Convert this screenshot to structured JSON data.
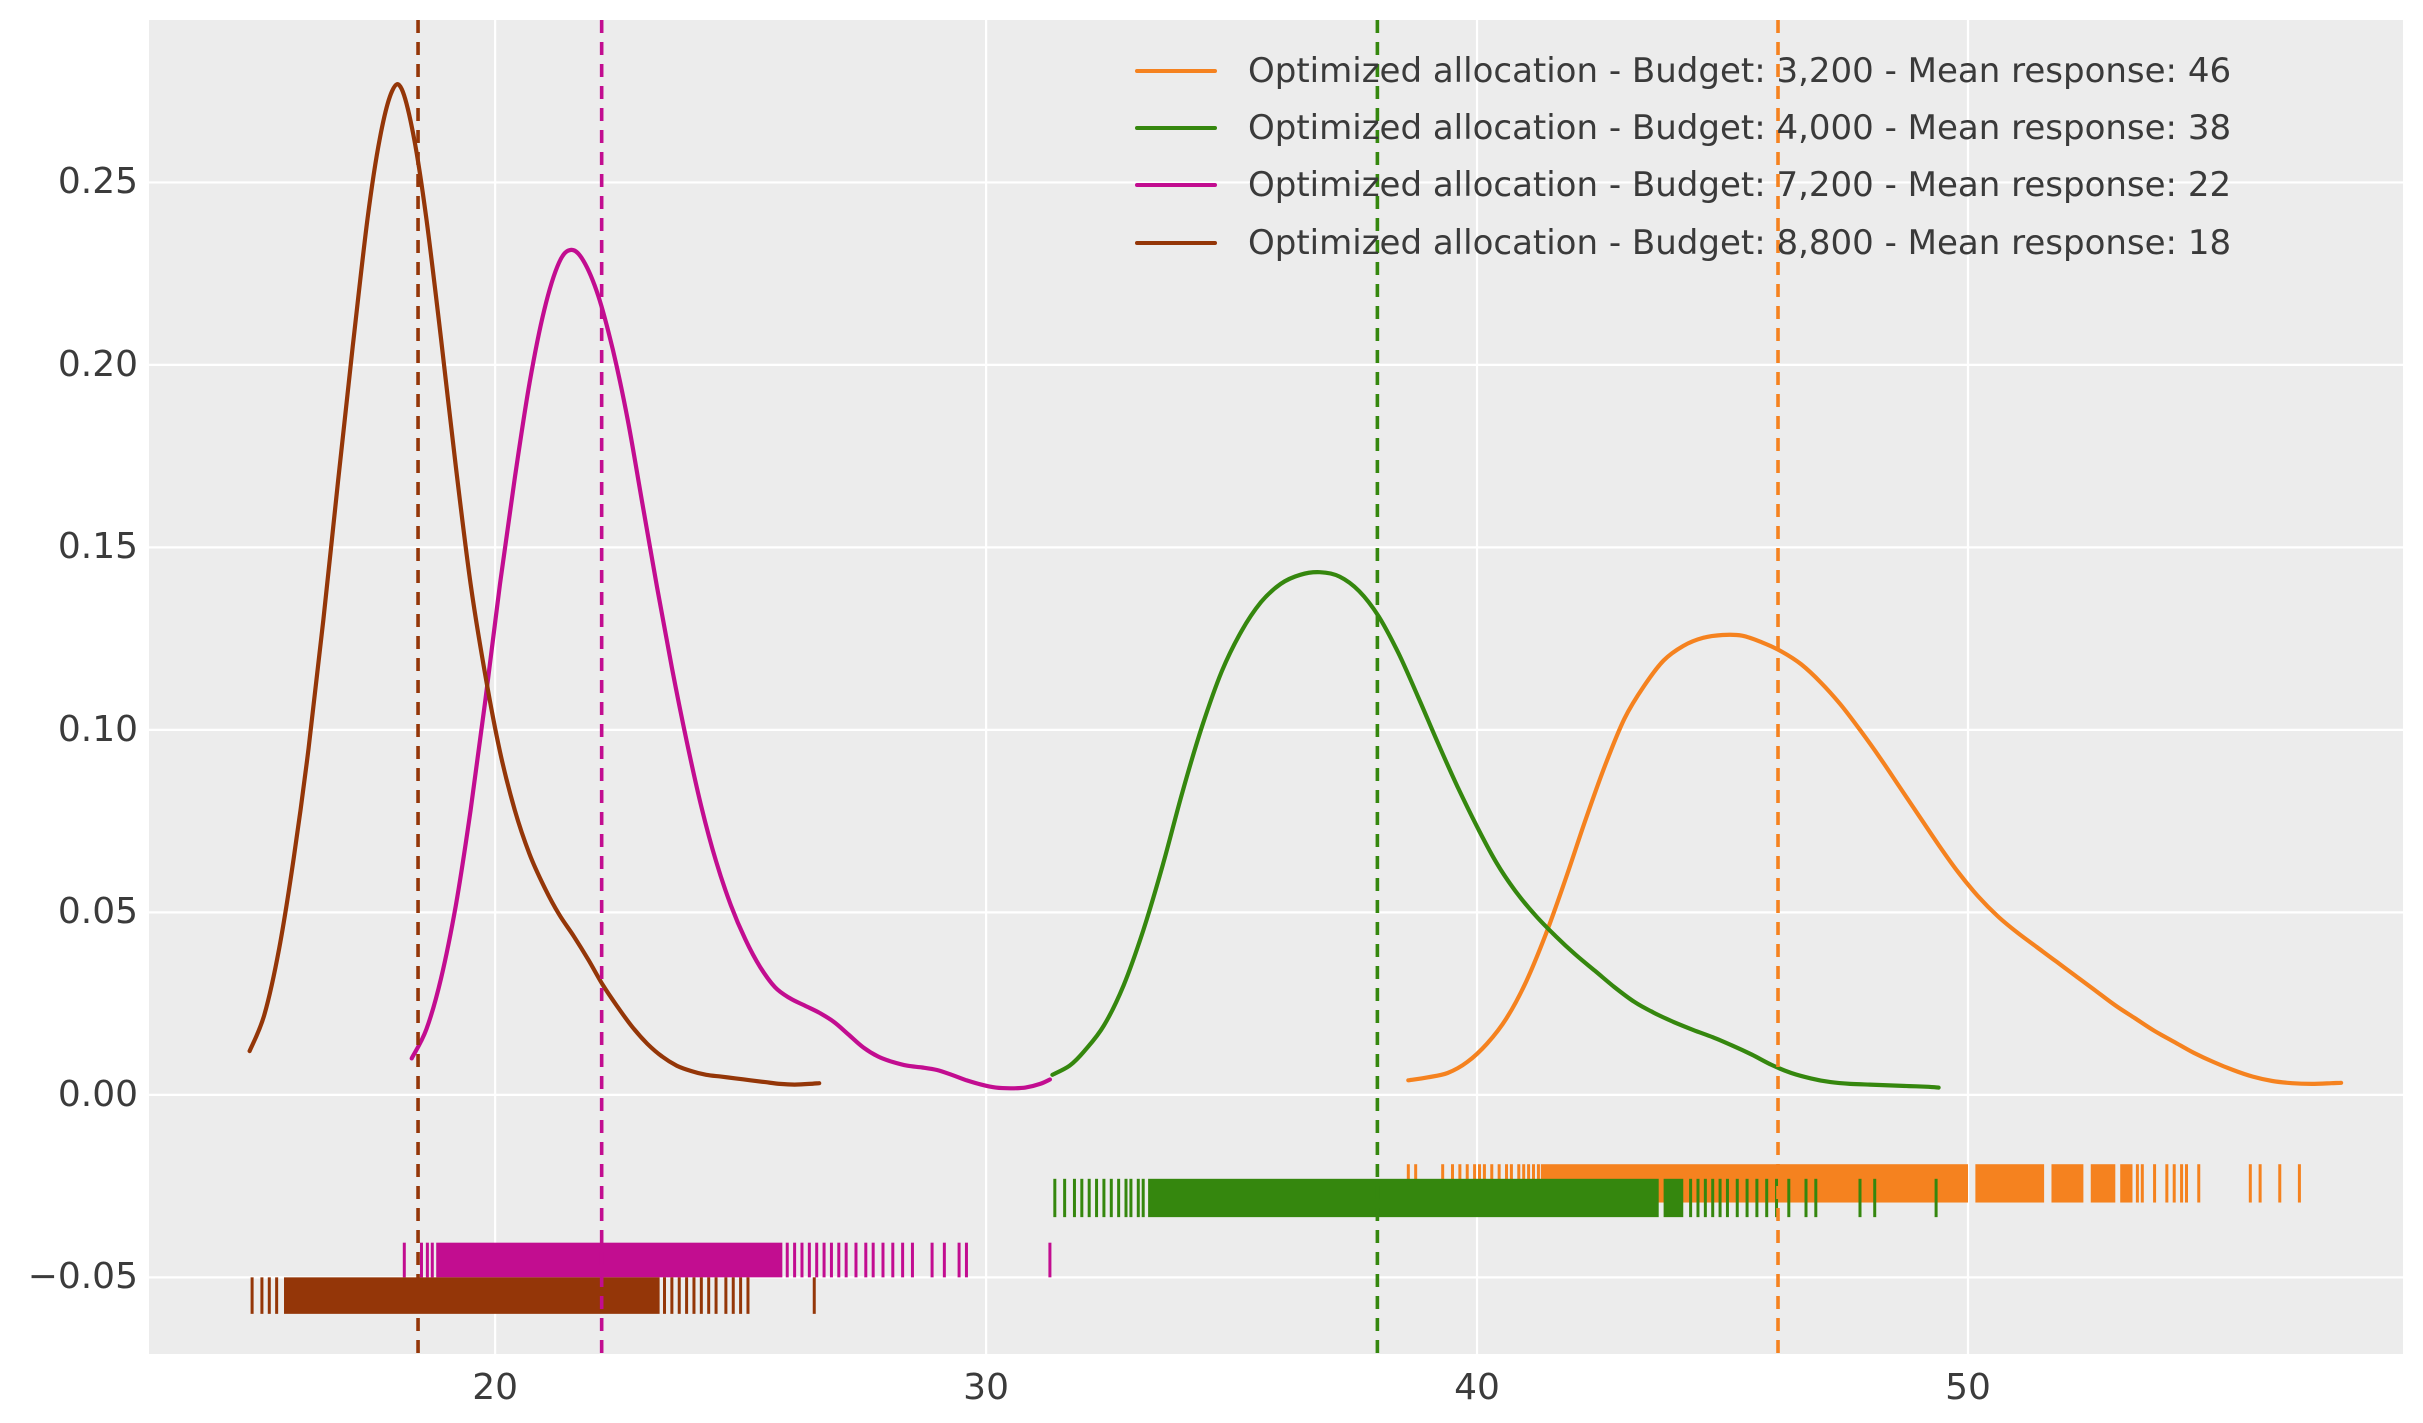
{
  "chart_data": {
    "type": "line",
    "subtype": "kde-with-rug",
    "title": "",
    "xlabel": "",
    "ylabel": "",
    "xlim": [
      12.95,
      58.86
    ],
    "ylim": [
      -0.071,
      0.2945
    ],
    "grid": true,
    "legend_position": "upper right",
    "background_color": "#ececec",
    "grid_color": "#ffffff",
    "tick_color": "#3b3b3b",
    "xticks": [
      20,
      30,
      40,
      50
    ],
    "xtick_labels": [
      "20",
      "30",
      "40",
      "50"
    ],
    "yticks": [
      0.25,
      0.2,
      0.15,
      0.1,
      0.05,
      0.0,
      -0.05
    ],
    "ytick_labels": [
      "0.25",
      "0.20",
      "0.15",
      "0.10",
      "0.05",
      "0.00",
      "−0.05"
    ],
    "series": [
      {
        "name": "budget-3200",
        "label": "Optimized allocation - Budget: 3,200 - Mean response: 46",
        "budget": "3,200",
        "mean_response": "46",
        "color": "#f5821f",
        "mean_line_x": 46.13,
        "kde": {
          "x": [
            38.6,
            39.0,
            39.4,
            39.8,
            40.2,
            40.6,
            41.0,
            41.4,
            41.8,
            42.2,
            42.6,
            43.0,
            43.4,
            43.8,
            44.2,
            44.6,
            45.0,
            45.4,
            45.8,
            46.2,
            46.6,
            47.0,
            47.4,
            47.8,
            48.2,
            48.6,
            49.0,
            49.4,
            49.8,
            50.2,
            50.6,
            51.0,
            51.4,
            51.8,
            52.2,
            52.6,
            53.0,
            53.4,
            53.8,
            54.2,
            54.6,
            55.0,
            55.4,
            55.8,
            56.2,
            56.6,
            57.0,
            57.4,
            57.6
          ],
          "y": [
            0.004,
            0.0048,
            0.006,
            0.009,
            0.014,
            0.021,
            0.031,
            0.044,
            0.059,
            0.075,
            0.09,
            0.103,
            0.112,
            0.119,
            0.123,
            0.1252,
            0.126,
            0.1258,
            0.124,
            0.1215,
            0.118,
            0.113,
            0.107,
            0.1,
            0.0925,
            0.0845,
            0.0765,
            0.0685,
            0.061,
            0.0545,
            0.049,
            0.0445,
            0.0405,
            0.0365,
            0.0325,
            0.0285,
            0.0245,
            0.021,
            0.0175,
            0.0145,
            0.0115,
            0.009,
            0.0068,
            0.005,
            0.0038,
            0.0032,
            0.003,
            0.0032,
            0.0033
          ]
        },
        "rug": {
          "y_top": -0.019,
          "y_bottom": -0.0295,
          "dense_segments": [
            [
              41.3,
              50.0
            ],
            [
              50.15,
              51.55
            ],
            [
              51.7,
              52.35
            ],
            [
              52.5,
              53.0
            ],
            [
              53.1,
              53.35
            ]
          ],
          "ticks": [
            38.6,
            38.75,
            39.3,
            39.5,
            39.65,
            39.8,
            39.95,
            40.05,
            40.15,
            40.3,
            40.45,
            40.6,
            40.7,
            40.85,
            40.95,
            41.05,
            41.15,
            41.25,
            53.45,
            53.55,
            53.8,
            54.05,
            54.2,
            54.35,
            54.45,
            54.7,
            55.75,
            55.95,
            56.35,
            56.75
          ]
        }
      },
      {
        "name": "budget-4000",
        "label": "Optimized allocation - Budget: 4,000 - Mean response: 38",
        "budget": "4,000",
        "mean_response": "38",
        "color": "#35870e",
        "mean_line_x": 37.97,
        "kde": {
          "x": [
            31.35,
            31.7,
            32.0,
            32.4,
            32.8,
            33.2,
            33.6,
            34.0,
            34.4,
            34.8,
            35.2,
            35.6,
            36.0,
            36.4,
            36.8,
            37.2,
            37.6,
            38.0,
            38.4,
            38.8,
            39.2,
            39.6,
            40.0,
            40.4,
            40.8,
            41.2,
            41.6,
            42.0,
            42.4,
            42.8,
            43.2,
            43.6,
            44.0,
            44.4,
            44.8,
            45.2,
            45.6,
            46.0,
            46.4,
            46.8,
            47.2,
            47.6,
            48.0,
            48.4,
            48.8,
            49.2,
            49.4
          ],
          "y": [
            0.0055,
            0.008,
            0.012,
            0.019,
            0.03,
            0.045,
            0.063,
            0.083,
            0.101,
            0.116,
            0.127,
            0.135,
            0.14,
            0.1425,
            0.1432,
            0.142,
            0.138,
            0.131,
            0.121,
            0.109,
            0.0965,
            0.0845,
            0.0735,
            0.0635,
            0.0555,
            0.049,
            0.0435,
            0.0385,
            0.034,
            0.0295,
            0.0255,
            0.0225,
            0.02,
            0.0178,
            0.0158,
            0.0135,
            0.011,
            0.0082,
            0.006,
            0.0045,
            0.0035,
            0.003,
            0.0028,
            0.0026,
            0.0024,
            0.0022,
            0.002
          ]
        },
        "rug": {
          "y_top": -0.023,
          "y_bottom": -0.0335,
          "dense_segments": [
            [
              33.3,
              43.7
            ],
            [
              43.8,
              44.2
            ]
          ],
          "ticks": [
            31.4,
            31.6,
            31.8,
            31.95,
            32.1,
            32.25,
            32.4,
            32.55,
            32.7,
            32.85,
            32.95,
            33.1,
            33.2,
            44.35,
            44.5,
            44.65,
            44.8,
            44.95,
            45.1,
            45.3,
            45.5,
            45.7,
            45.9,
            46.1,
            46.35,
            46.7,
            46.9,
            47.8,
            48.1,
            49.35
          ]
        }
      },
      {
        "name": "budget-7200",
        "label": "Optimized allocation - Budget: 7,200 - Mean response: 22",
        "budget": "7,200",
        "mean_response": "22",
        "color": "#c20d90",
        "mean_line_x": 22.17,
        "kde": {
          "x": [
            18.3,
            18.6,
            18.9,
            19.2,
            19.5,
            19.8,
            20.1,
            20.4,
            20.7,
            21.0,
            21.3,
            21.55,
            21.8,
            22.1,
            22.4,
            22.7,
            23.0,
            23.3,
            23.6,
            23.9,
            24.2,
            24.5,
            24.8,
            25.1,
            25.4,
            25.7,
            26.0,
            26.3,
            26.6,
            26.9,
            27.2,
            27.5,
            27.8,
            28.1,
            28.4,
            28.7,
            29.0,
            29.3,
            29.6,
            29.9,
            30.2,
            30.5,
            30.8,
            31.1,
            31.3
          ],
          "y": [
            0.01,
            0.018,
            0.032,
            0.052,
            0.078,
            0.108,
            0.14,
            0.169,
            0.195,
            0.215,
            0.228,
            0.2315,
            0.2285,
            0.219,
            0.204,
            0.185,
            0.162,
            0.139,
            0.117,
            0.097,
            0.079,
            0.064,
            0.052,
            0.0425,
            0.035,
            0.0295,
            0.0265,
            0.0245,
            0.0225,
            0.02,
            0.0165,
            0.013,
            0.0105,
            0.009,
            0.008,
            0.0075,
            0.0068,
            0.0055,
            0.004,
            0.0028,
            0.002,
            0.0018,
            0.002,
            0.003,
            0.0042
          ]
        },
        "rug": {
          "y_top": -0.0405,
          "y_bottom": -0.05,
          "dense_segments": [
            [
              18.8,
              25.85
            ]
          ],
          "ticks": [
            18.15,
            18.5,
            18.62,
            18.72,
            25.95,
            26.1,
            26.25,
            26.4,
            26.55,
            26.7,
            26.85,
            27.0,
            27.15,
            27.35,
            27.55,
            27.7,
            27.9,
            28.1,
            28.3,
            28.5,
            28.9,
            29.15,
            29.45,
            29.6,
            31.3
          ]
        }
      },
      {
        "name": "budget-8800",
        "label": "Optimized allocation - Budget: 8,800 - Mean response: 18",
        "budget": "8,800",
        "mean_response": "18",
        "color": "#943608",
        "mean_line_x": 18.43,
        "kde": {
          "x": [
            15.0,
            15.3,
            15.6,
            15.9,
            16.2,
            16.5,
            16.8,
            17.1,
            17.4,
            17.65,
            17.9,
            18.1,
            18.35,
            18.6,
            18.9,
            19.2,
            19.5,
            19.8,
            20.1,
            20.4,
            20.7,
            21.0,
            21.3,
            21.6,
            21.9,
            22.2,
            22.5,
            22.8,
            23.1,
            23.4,
            23.7,
            24.0,
            24.3,
            24.6,
            24.9,
            25.2,
            25.5,
            25.8,
            26.1,
            26.4,
            26.6
          ],
          "y": [
            0.012,
            0.022,
            0.04,
            0.065,
            0.095,
            0.13,
            0.168,
            0.205,
            0.24,
            0.262,
            0.275,
            0.2755,
            0.262,
            0.24,
            0.207,
            0.172,
            0.14,
            0.115,
            0.094,
            0.078,
            0.066,
            0.057,
            0.0495,
            0.0435,
            0.037,
            0.03,
            0.024,
            0.0185,
            0.014,
            0.0105,
            0.008,
            0.0065,
            0.0055,
            0.005,
            0.0045,
            0.004,
            0.0035,
            0.003,
            0.0028,
            0.003,
            0.0032
          ]
        },
        "rug": {
          "y_top": -0.05,
          "y_bottom": -0.06,
          "dense_segments": [
            [
              15.7,
              23.35
            ]
          ],
          "ticks": [
            15.05,
            15.25,
            15.4,
            15.55,
            23.45,
            23.6,
            23.75,
            23.9,
            24.05,
            24.2,
            24.35,
            24.5,
            24.7,
            24.85,
            25.0,
            25.15,
            26.5
          ]
        }
      }
    ]
  }
}
